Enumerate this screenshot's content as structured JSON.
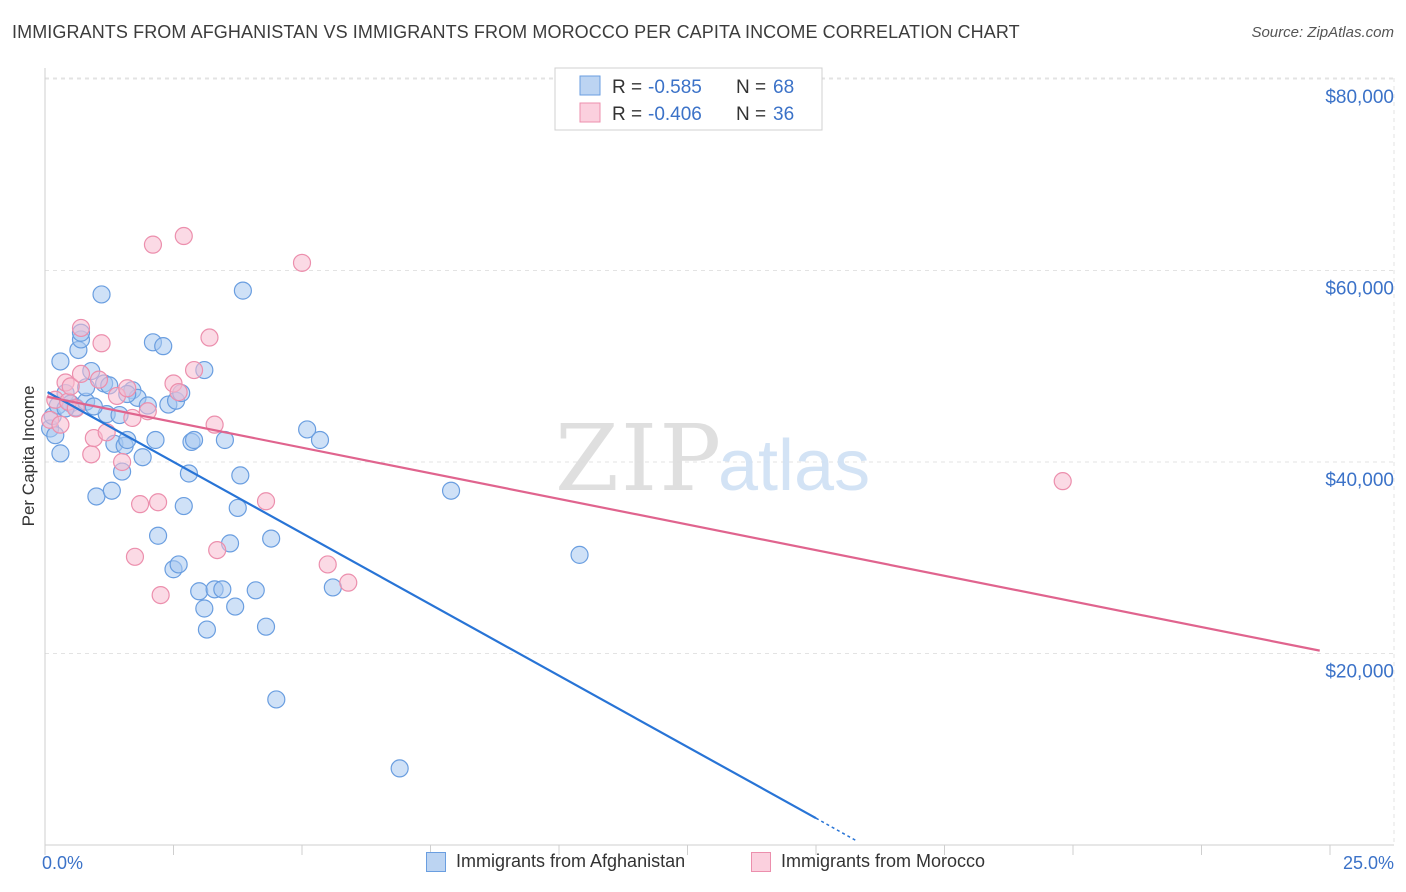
{
  "header": {
    "title": "IMMIGRANTS FROM AFGHANISTAN VS IMMIGRANTS FROM MOROCCO PER CAPITA INCOME CORRELATION CHART",
    "source": "Source: ZipAtlas.com"
  },
  "watermark": {
    "zip": "ZIP",
    "atlas": "atlas"
  },
  "stats_legend": {
    "rows": [
      {
        "r_label": "R =",
        "r_value": "-0.585",
        "n_label": "N =",
        "n_value": "68"
      },
      {
        "r_label": "R =",
        "r_value": "-0.406",
        "n_label": "N =",
        "n_value": "36"
      }
    ]
  },
  "colors": {
    "afghanistan_fill": "#a8c8f0",
    "afghanistan_stroke": "#6a9ee0",
    "afghanistan_line": "#2874d6",
    "morocco_fill": "#f8bcd0",
    "morocco_stroke": "#ec8fad",
    "morocco_line": "#e0648e",
    "value_text": "#3b72c8",
    "grid": "#e3e3e3"
  },
  "chart_data": {
    "type": "scatter",
    "title": "IMMIGRANTS FROM AFGHANISTAN VS IMMIGRANTS FROM MOROCCO PER CAPITA INCOME CORRELATION CHART",
    "xlabel": "",
    "ylabel": "Per Capita Income",
    "xlim": [
      0,
      25
    ],
    "ylim": [
      0,
      82000
    ],
    "x_tick_labels": [
      "0.0%",
      "25.0%"
    ],
    "y_ticks": [
      20000,
      40000,
      60000,
      80000
    ],
    "y_tick_labels": [
      "$20,000",
      "$40,000",
      "$60,000",
      "$80,000"
    ],
    "grid": true,
    "legend_position": "bottom",
    "series": [
      {
        "name": "Immigrants from Afghanistan",
        "r": -0.585,
        "n": 68,
        "trend": {
          "x": [
            0.05,
            15.0
          ],
          "y": [
            47300,
            2800
          ],
          "dashed_to": [
            15.8,
            400
          ]
        },
        "points": [
          [
            0.1,
            43500
          ],
          [
            0.15,
            44800
          ],
          [
            0.2,
            42800
          ],
          [
            0.25,
            45900
          ],
          [
            0.3,
            50500
          ],
          [
            0.3,
            40900
          ],
          [
            0.4,
            47200
          ],
          [
            0.5,
            46100
          ],
          [
            0.6,
            45700
          ],
          [
            0.65,
            51700
          ],
          [
            0.7,
            52800
          ],
          [
            0.7,
            53500
          ],
          [
            0.8,
            46300
          ],
          [
            0.8,
            47800
          ],
          [
            0.9,
            49500
          ],
          [
            1.0,
            36400
          ],
          [
            1.1,
            57500
          ],
          [
            1.15,
            48200
          ],
          [
            1.2,
            45000
          ],
          [
            1.3,
            37000
          ],
          [
            1.35,
            41900
          ],
          [
            1.45,
            44900
          ],
          [
            1.5,
            39000
          ],
          [
            1.55,
            41700
          ],
          [
            1.6,
            42300
          ],
          [
            1.7,
            47500
          ],
          [
            1.8,
            46700
          ],
          [
            1.9,
            40500
          ],
          [
            2.1,
            52500
          ],
          [
            2.15,
            42300
          ],
          [
            2.2,
            32300
          ],
          [
            2.3,
            52100
          ],
          [
            2.4,
            46000
          ],
          [
            2.5,
            28800
          ],
          [
            2.55,
            46400
          ],
          [
            2.6,
            29300
          ],
          [
            2.65,
            47200
          ],
          [
            2.7,
            35400
          ],
          [
            2.8,
            38800
          ],
          [
            2.85,
            42100
          ],
          [
            2.9,
            42300
          ],
          [
            3.0,
            26500
          ],
          [
            3.1,
            49600
          ],
          [
            3.1,
            24700
          ],
          [
            3.15,
            22500
          ],
          [
            3.3,
            26700
          ],
          [
            3.45,
            26700
          ],
          [
            3.5,
            42300
          ],
          [
            3.6,
            31500
          ],
          [
            3.7,
            24900
          ],
          [
            3.75,
            35200
          ],
          [
            3.8,
            38600
          ],
          [
            3.85,
            57900
          ],
          [
            4.1,
            26600
          ],
          [
            4.3,
            22800
          ],
          [
            4.4,
            32000
          ],
          [
            4.5,
            15200
          ],
          [
            5.1,
            43400
          ],
          [
            5.35,
            42300
          ],
          [
            5.6,
            26900
          ],
          [
            7.9,
            37000
          ],
          [
            10.4,
            30300
          ],
          [
            6.9,
            8000
          ],
          [
            0.4,
            45600
          ],
          [
            0.95,
            45800
          ],
          [
            1.6,
            47100
          ],
          [
            2.0,
            45900
          ],
          [
            1.25,
            48000
          ]
        ]
      },
      {
        "name": "Immigrants from Morocco",
        "r": -0.406,
        "n": 36,
        "trend": {
          "x": [
            0.05,
            24.8
          ],
          "y": [
            46800,
            20300
          ]
        },
        "points": [
          [
            0.1,
            44400
          ],
          [
            0.2,
            46500
          ],
          [
            0.3,
            43900
          ],
          [
            0.4,
            48300
          ],
          [
            0.45,
            46300
          ],
          [
            0.5,
            47900
          ],
          [
            0.6,
            45600
          ],
          [
            0.7,
            49200
          ],
          [
            0.7,
            54000
          ],
          [
            0.9,
            40800
          ],
          [
            0.95,
            42500
          ],
          [
            1.05,
            48600
          ],
          [
            1.1,
            52400
          ],
          [
            1.2,
            43100
          ],
          [
            1.4,
            46900
          ],
          [
            1.5,
            40000
          ],
          [
            1.6,
            47700
          ],
          [
            1.7,
            44600
          ],
          [
            1.75,
            30100
          ],
          [
            1.85,
            35600
          ],
          [
            2.0,
            45300
          ],
          [
            2.1,
            62700
          ],
          [
            2.2,
            35800
          ],
          [
            2.25,
            26100
          ],
          [
            2.5,
            48200
          ],
          [
            2.6,
            47300
          ],
          [
            2.7,
            63600
          ],
          [
            2.9,
            49600
          ],
          [
            3.2,
            53000
          ],
          [
            3.3,
            43900
          ],
          [
            3.35,
            30800
          ],
          [
            4.3,
            35900
          ],
          [
            5.0,
            60800
          ],
          [
            5.5,
            29300
          ],
          [
            5.9,
            27400
          ],
          [
            19.8,
            38000
          ]
        ]
      }
    ]
  },
  "bottom_legend": {
    "items": [
      {
        "label": "Immigrants from Afghanistan"
      },
      {
        "label": "Immigrants from Morocco"
      }
    ]
  }
}
